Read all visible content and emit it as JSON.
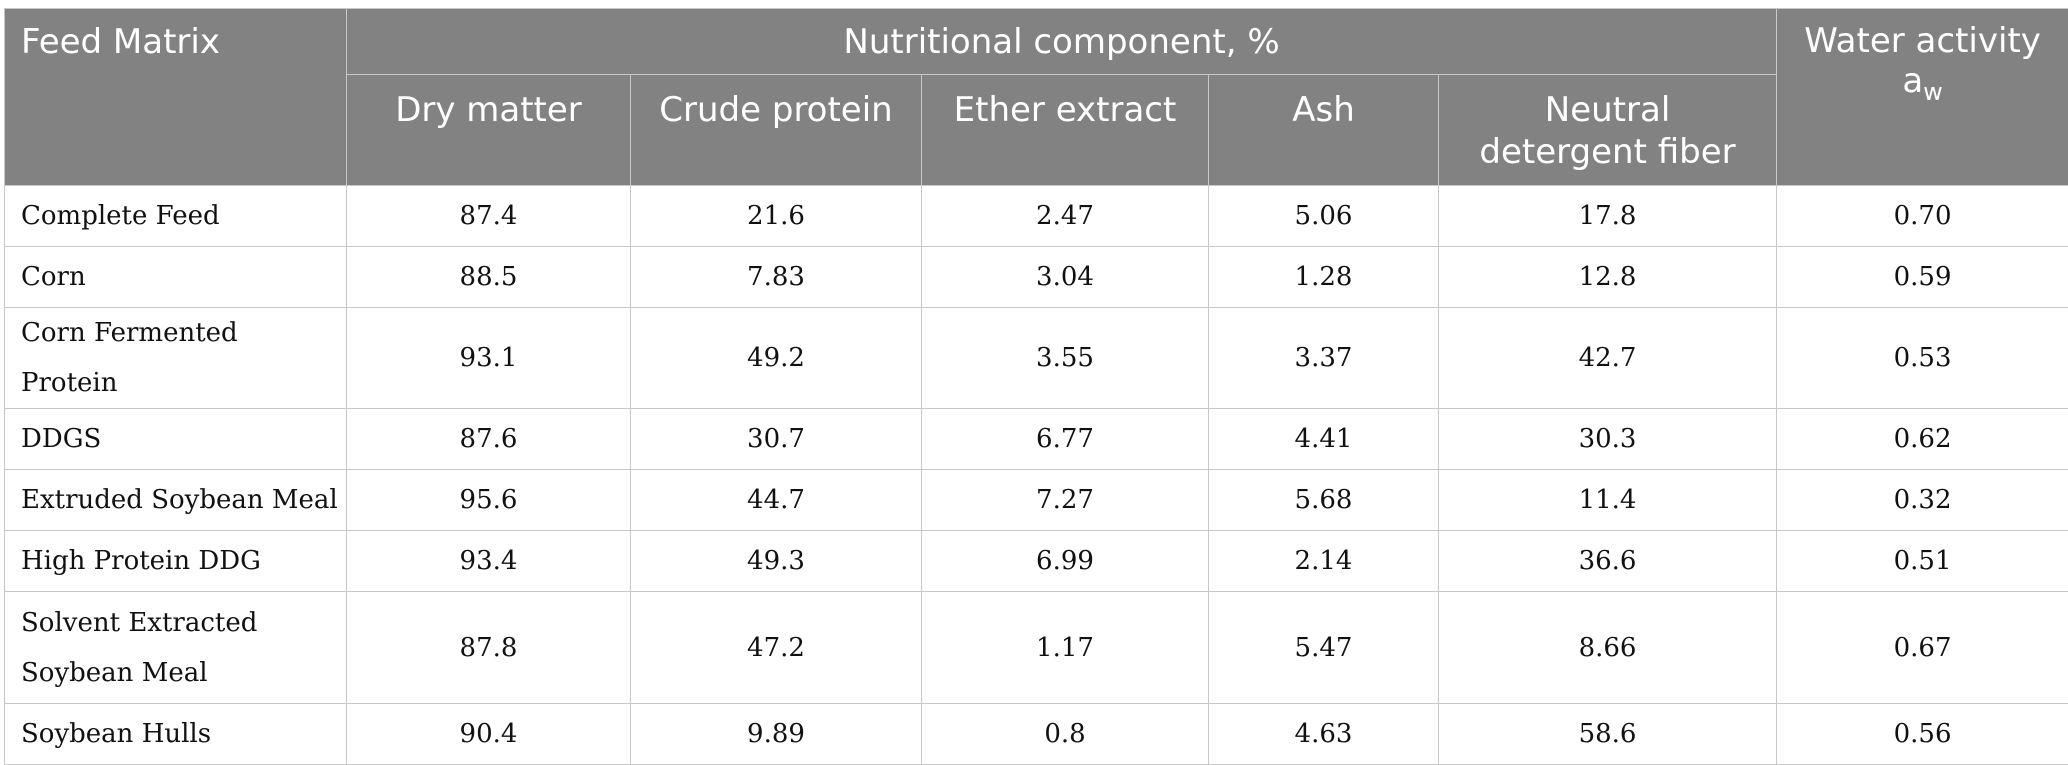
{
  "table": {
    "headers": {
      "feed_matrix": "Feed Matrix",
      "nutritional_group": "Nutritional component, %",
      "dry_matter": "Dry matter",
      "crude_protein": "Crude protein",
      "ether_extract": "Ether extract",
      "ash": "Ash",
      "ndf_line1": "Neutral",
      "ndf_line2": "detergent fiber",
      "water_activity": "Water activity",
      "aw_main": "a",
      "aw_sub": "w"
    },
    "rows": [
      {
        "name": "Complete Feed",
        "dry_matter": "87.4",
        "crude_protein": "21.6",
        "ether_extract": "2.47",
        "ash": "5.06",
        "ndf": "17.8",
        "water_activity": "0.70"
      },
      {
        "name": "Corn",
        "dry_matter": "88.5",
        "crude_protein": "7.83",
        "ether_extract": "3.04",
        "ash": "1.28",
        "ndf": "12.8",
        "water_activity": "0.59"
      },
      {
        "name": "Corn Fermented Protein",
        "dry_matter": "93.1",
        "crude_protein": "49.2",
        "ether_extract": "3.55",
        "ash": "3.37",
        "ndf": "42.7",
        "water_activity": "0.53"
      },
      {
        "name": "DDGS",
        "dry_matter": "87.6",
        "crude_protein": "30.7",
        "ether_extract": "6.77",
        "ash": "4.41",
        "ndf": "30.3",
        "water_activity": "0.62"
      },
      {
        "name": "Extruded Soybean Meal",
        "dry_matter": "95.6",
        "crude_protein": "44.7",
        "ether_extract": "7.27",
        "ash": "5.68",
        "ndf": "11.4",
        "water_activity": "0.32"
      },
      {
        "name": "High Protein DDG",
        "dry_matter": "93.4",
        "crude_protein": "49.3",
        "ether_extract": "6.99",
        "ash": "2.14",
        "ndf": "36.6",
        "water_activity": "0.51"
      },
      {
        "name_line1": "Solvent Extracted",
        "name_line2": "Soybean Meal",
        "dry_matter": "87.8",
        "crude_protein": "47.2",
        "ether_extract": "1.17",
        "ash": "5.47",
        "ndf": "8.66",
        "water_activity": "0.67"
      },
      {
        "name": "Soybean Hulls",
        "dry_matter": "90.4",
        "crude_protein": "9.89",
        "ether_extract": "0.8",
        "ash": "4.63",
        "ndf": "58.6",
        "water_activity": "0.56"
      }
    ],
    "colors": {
      "header_background": "#828282",
      "header_text": "#ffffff",
      "grid_lines": "#c8c8c8",
      "body_text": "#111111"
    }
  }
}
